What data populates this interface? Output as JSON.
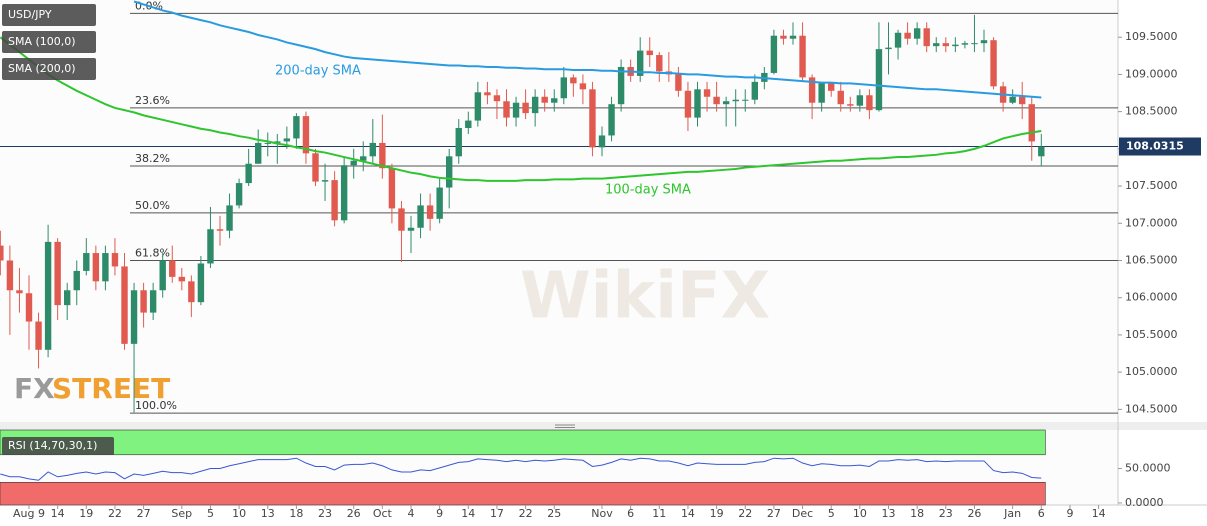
{
  "chart_data": {
    "type": "candlestick",
    "title": "USD/JPY",
    "categories": [
      null,
      null,
      null,
      "Aug 9",
      null,
      null,
      "14",
      null,
      null,
      "19",
      null,
      null,
      "22",
      null,
      null,
      "27",
      null,
      null,
      null,
      "Sep",
      null,
      null,
      "5",
      null,
      null,
      "10",
      null,
      null,
      "13",
      null,
      null,
      "18",
      null,
      null,
      "23",
      null,
      null,
      "26",
      null,
      null,
      "Oct",
      null,
      null,
      "4",
      null,
      null,
      "9",
      null,
      null,
      "14",
      null,
      null,
      "17",
      null,
      null,
      "22",
      null,
      null,
      "25",
      null,
      null,
      null,
      null,
      "Nov",
      null,
      null,
      "6",
      null,
      null,
      "11",
      null,
      null,
      "14",
      null,
      null,
      "19",
      null,
      null,
      "22",
      null,
      null,
      "27",
      null,
      null,
      "Dec",
      null,
      null,
      "5",
      null,
      null,
      "10",
      null,
      null,
      "13",
      null,
      null,
      "18",
      null,
      null,
      "23",
      null,
      null,
      "26",
      null,
      null,
      null,
      "Jan",
      null,
      null,
      "6",
      null,
      null,
      "9",
      null,
      null,
      "14"
    ],
    "ohlc": {
      "up_color": "#2e8b6a",
      "down_color": "#e05a4f",
      "open": [
        106.7,
        106.5,
        106.1,
        106.06,
        105.68,
        105.3,
        106.75,
        105.9,
        106.1,
        106.36,
        106.6,
        106.22,
        106.6,
        106.42,
        105.38,
        106.1,
        105.8,
        106.1,
        106.5,
        106.28,
        106.22,
        105.94,
        106.46,
        106.92,
        106.9,
        107.24,
        107.54,
        107.8,
        108.08,
        108.08,
        108.1,
        108.14,
        108.44,
        107.94,
        107.56,
        107.58,
        107.04,
        107.78,
        107.84,
        107.9,
        108.08,
        107.74,
        107.2,
        106.9,
        106.94,
        107.24,
        107.06,
        107.48,
        107.9,
        108.28,
        108.38,
        108.76,
        108.72,
        108.64,
        108.42,
        108.62,
        108.48,
        108.7,
        108.62,
        108.68,
        108.96,
        108.88,
        108.8,
        108.02,
        108.18,
        108.6,
        109.1,
        108.98,
        109.32,
        109.26,
        109.04,
        109.0,
        108.78,
        108.42,
        108.8,
        108.7,
        108.6,
        108.64,
        108.66,
        108.66,
        108.9,
        109.02,
        109.52,
        109.48,
        109.52,
        108.96,
        108.62,
        108.88,
        108.78,
        108.6,
        108.58,
        108.72,
        108.52,
        109.34,
        109.36,
        109.56,
        109.48,
        109.62,
        109.38,
        109.42,
        109.38,
        109.4,
        109.42,
        109.42,
        109.46,
        108.84,
        108.62,
        108.7,
        108.6,
        107.9,
        null,
        null,
        null,
        null,
        null,
        null
      ],
      "high": [
        106.9,
        106.7,
        106.4,
        106.3,
        105.8,
        106.98,
        106.8,
        106.2,
        106.5,
        106.8,
        106.7,
        106.7,
        106.8,
        106.6,
        106.2,
        106.2,
        106.2,
        106.6,
        106.7,
        106.4,
        106.3,
        106.56,
        107.22,
        107.1,
        107.4,
        107.6,
        108.0,
        108.26,
        108.22,
        108.2,
        108.3,
        108.48,
        108.5,
        108.0,
        107.8,
        107.7,
        107.9,
        108.0,
        108.1,
        108.4,
        108.46,
        107.8,
        107.3,
        107.1,
        107.4,
        107.4,
        107.6,
        108.0,
        108.4,
        108.5,
        108.9,
        108.9,
        108.8,
        108.8,
        108.7,
        108.8,
        108.8,
        108.8,
        108.8,
        109.1,
        109.0,
        109.0,
        108.9,
        108.3,
        108.7,
        109.2,
        109.2,
        109.5,
        109.5,
        109.3,
        109.3,
        109.1,
        108.9,
        108.9,
        108.9,
        108.9,
        108.7,
        108.8,
        108.8,
        109.0,
        109.1,
        109.6,
        109.6,
        109.7,
        109.7,
        109.0,
        108.9,
        108.9,
        108.9,
        108.7,
        108.8,
        108.8,
        109.7,
        109.7,
        109.6,
        109.7,
        109.7,
        109.7,
        109.5,
        109.5,
        109.5,
        109.45,
        109.8,
        109.6,
        109.5,
        108.9,
        108.8,
        108.9,
        108.7,
        108.2,
        null,
        null,
        null,
        null,
        null,
        null
      ],
      "low": [
        106.3,
        105.5,
        105.8,
        105.3,
        105.05,
        105.2,
        105.7,
        105.7,
        105.9,
        106.3,
        106.1,
        106.1,
        106.3,
        105.3,
        104.46,
        105.6,
        105.7,
        106.0,
        106.2,
        106.1,
        105.74,
        105.9,
        106.4,
        106.7,
        106.8,
        107.2,
        107.5,
        107.8,
        107.9,
        107.8,
        108.0,
        108.0,
        107.8,
        107.5,
        107.3,
        106.96,
        107.0,
        107.6,
        107.7,
        107.8,
        107.6,
        107.0,
        106.48,
        106.6,
        106.8,
        106.9,
        107.0,
        107.2,
        107.8,
        108.2,
        108.3,
        108.6,
        108.4,
        108.3,
        108.3,
        108.4,
        108.3,
        108.5,
        108.5,
        108.6,
        108.7,
        108.6,
        107.9,
        107.9,
        108.1,
        108.5,
        108.9,
        108.9,
        109.1,
        108.9,
        108.9,
        108.7,
        108.24,
        108.3,
        108.5,
        108.5,
        108.3,
        108.3,
        108.5,
        108.6,
        108.8,
        109.0,
        109.4,
        109.4,
        108.9,
        108.4,
        108.5,
        108.7,
        108.5,
        108.5,
        108.5,
        108.4,
        108.5,
        109.0,
        109.2,
        109.4,
        109.4,
        109.3,
        109.3,
        109.3,
        109.3,
        109.35,
        109.3,
        109.3,
        108.8,
        108.5,
        108.6,
        108.4,
        107.84,
        107.77,
        null,
        null,
        null,
        null,
        null,
        null
      ],
      "close": [
        106.5,
        106.1,
        106.06,
        105.68,
        105.3,
        106.75,
        105.9,
        106.1,
        106.36,
        106.6,
        106.22,
        106.6,
        106.42,
        105.38,
        106.1,
        105.8,
        106.1,
        106.5,
        106.28,
        106.22,
        105.94,
        106.46,
        106.92,
        106.9,
        107.24,
        107.54,
        107.8,
        108.08,
        108.08,
        108.1,
        108.14,
        108.44,
        107.94,
        107.56,
        107.58,
        107.04,
        107.78,
        107.84,
        107.9,
        108.08,
        107.74,
        107.2,
        106.9,
        106.94,
        107.24,
        107.06,
        107.48,
        107.9,
        108.28,
        108.38,
        108.76,
        108.72,
        108.64,
        108.42,
        108.62,
        108.48,
        108.7,
        108.62,
        108.68,
        108.96,
        108.88,
        108.8,
        108.02,
        108.18,
        108.6,
        109.1,
        108.98,
        109.32,
        109.26,
        109.04,
        109.0,
        108.78,
        108.42,
        108.8,
        108.7,
        108.6,
        108.64,
        108.66,
        108.66,
        108.9,
        109.02,
        109.52,
        109.48,
        109.52,
        108.96,
        108.62,
        108.88,
        108.78,
        108.6,
        108.58,
        108.72,
        108.52,
        109.34,
        109.36,
        109.56,
        109.48,
        109.62,
        109.38,
        109.42,
        109.38,
        109.4,
        109.42,
        109.42,
        109.46,
        108.84,
        108.62,
        108.7,
        108.6,
        108.1,
        108.03,
        null,
        null,
        null,
        null,
        null,
        null
      ]
    },
    "lines": [
      {
        "name": "SMA (100,0)",
        "label": "100-day SMA",
        "color": "#2fc52f",
        "values": [
          109.5,
          109.4,
          109.3,
          109.2,
          109.1,
          109.0,
          108.92,
          108.85,
          108.78,
          108.72,
          108.66,
          108.6,
          108.55,
          108.52,
          108.49,
          108.45,
          108.42,
          108.39,
          108.36,
          108.33,
          108.3,
          108.27,
          108.25,
          108.22,
          108.2,
          108.17,
          108.15,
          108.12,
          108.1,
          108.07,
          108.05,
          108.02,
          108.0,
          107.97,
          107.95,
          107.92,
          107.89,
          107.86,
          107.83,
          107.8,
          107.77,
          107.74,
          107.71,
          107.68,
          107.66,
          107.63,
          107.61,
          107.6,
          107.59,
          107.58,
          107.58,
          107.57,
          107.57,
          107.57,
          107.57,
          107.58,
          107.58,
          107.58,
          107.59,
          107.59,
          107.59,
          107.6,
          107.6,
          107.6,
          107.61,
          107.62,
          107.63,
          107.64,
          107.65,
          107.66,
          107.67,
          107.68,
          107.69,
          107.69,
          107.7,
          107.71,
          107.72,
          107.73,
          107.75,
          107.76,
          107.77,
          107.78,
          107.79,
          107.8,
          107.81,
          107.82,
          107.83,
          107.84,
          107.84,
          107.85,
          107.86,
          107.87,
          107.87,
          107.88,
          107.89,
          107.89,
          107.9,
          107.91,
          107.92,
          107.94,
          107.95,
          107.97,
          108.0,
          108.04,
          108.09,
          108.14,
          108.17,
          108.2,
          108.22,
          108.24,
          null,
          null,
          null,
          null,
          null,
          null
        ]
      },
      {
        "name": "SMA (200,0)",
        "label": "200-day SMA",
        "color": "#2a9be0",
        "values": [
          null,
          null,
          null,
          null,
          null,
          null,
          null,
          null,
          null,
          null,
          null,
          null,
          null,
          null,
          109.98,
          109.94,
          109.9,
          109.86,
          109.83,
          109.79,
          109.76,
          109.73,
          109.7,
          109.66,
          109.63,
          109.6,
          109.57,
          109.53,
          109.5,
          109.47,
          109.43,
          109.4,
          109.37,
          109.34,
          109.3,
          109.27,
          109.24,
          109.22,
          109.21,
          109.2,
          109.19,
          109.18,
          109.17,
          109.16,
          109.15,
          109.14,
          109.13,
          109.12,
          109.12,
          109.11,
          109.11,
          109.1,
          109.1,
          109.09,
          109.09,
          109.08,
          109.08,
          109.07,
          109.07,
          109.07,
          109.06,
          109.06,
          109.06,
          109.05,
          109.05,
          109.04,
          109.04,
          109.03,
          109.03,
          109.02,
          109.02,
          109.01,
          109.0,
          109.0,
          108.99,
          108.98,
          108.97,
          108.97,
          108.96,
          108.96,
          108.95,
          108.94,
          108.93,
          108.92,
          108.91,
          108.9,
          108.89,
          108.89,
          108.88,
          108.88,
          108.87,
          108.86,
          108.85,
          108.84,
          108.83,
          108.82,
          108.81,
          108.8,
          108.8,
          108.79,
          108.78,
          108.77,
          108.76,
          108.75,
          108.74,
          108.73,
          108.72,
          108.71,
          108.7,
          108.69,
          null,
          null,
          null,
          null,
          null,
          null
        ]
      }
    ],
    "fibonacci": [
      {
        "label": "0.0%",
        "value": 109.82
      },
      {
        "label": "23.6%",
        "value": 108.55
      },
      {
        "label": "38.2%",
        "value": 107.77
      },
      {
        "label": "50.0%",
        "value": 107.14
      },
      {
        "label": "61.8%",
        "value": 106.5
      },
      {
        "label": "100.0%",
        "value": 104.45
      }
    ],
    "last_price": {
      "value": 108.0315,
      "label": "108.0315"
    },
    "ylim": [
      104.33,
      110.0
    ],
    "yticks": [
      {
        "value": 104.5,
        "label": "104.5000"
      },
      {
        "value": 105,
        "label": "105.0000"
      },
      {
        "value": 105.5,
        "label": "105.5000"
      },
      {
        "value": 106,
        "label": "106.0000"
      },
      {
        "value": 106.5,
        "label": "106.5000"
      },
      {
        "value": 107,
        "label": "107.0000"
      },
      {
        "value": 107.5,
        "label": "107.5000"
      },
      {
        "value": 108,
        "label": "108.0000"
      },
      {
        "value": 108.5,
        "label": "108.5000"
      },
      {
        "value": 109,
        "label": "109.0000"
      },
      {
        "value": 109.5,
        "label": "109.5000"
      }
    ],
    "rsi": {
      "name": "RSI (14,70,30,1)",
      "color": "#3a56d4",
      "overbought": 70,
      "oversold": 30,
      "overbought_color": "#7ff27f",
      "oversold_color": "#f26b6b",
      "ylim": [
        -3,
        106
      ],
      "yticks": [
        {
          "value": 0,
          "label": "0.0000"
        },
        {
          "value": 50,
          "label": "50.0000"
        }
      ],
      "values": [
        42,
        38,
        38,
        35,
        33,
        45,
        38,
        40,
        43,
        45,
        42,
        45,
        44,
        35,
        42,
        40,
        43,
        46,
        44,
        44,
        42,
        46,
        50,
        50,
        54,
        57,
        60,
        63,
        63,
        63,
        63,
        65,
        58,
        53,
        53,
        48,
        55,
        56,
        56,
        58,
        54,
        48,
        45,
        45,
        48,
        47,
        51,
        55,
        59,
        60,
        64,
        63,
        62,
        60,
        62,
        60,
        62,
        61,
        62,
        64,
        63,
        62,
        53,
        55,
        59,
        64,
        62,
        65,
        64,
        61,
        61,
        58,
        54,
        58,
        57,
        56,
        56,
        56,
        56,
        59,
        60,
        65,
        64,
        65,
        58,
        54,
        57,
        56,
        54,
        54,
        55,
        53,
        61,
        61,
        63,
        62,
        63,
        60,
        61,
        60,
        61,
        61,
        61,
        61,
        47,
        44,
        45,
        43,
        37,
        36,
        null,
        null,
        null,
        null,
        null,
        null
      ]
    },
    "logo": [
      "FX",
      "STREET"
    ],
    "watermark": "WikiFX"
  }
}
